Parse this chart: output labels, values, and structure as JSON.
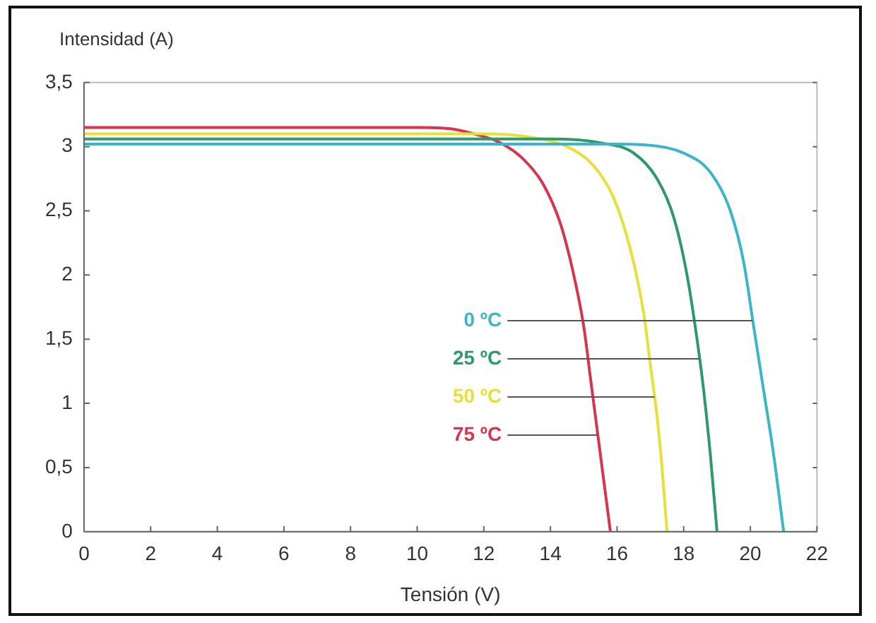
{
  "chart_data": {
    "type": "line",
    "ylabel": "Intensidad (A)",
    "xlabel": "Tensión (V)",
    "xlim": [
      0,
      22
    ],
    "xticks": [
      0,
      2,
      4,
      6,
      8,
      10,
      12,
      14,
      16,
      18,
      20,
      22
    ],
    "ylim": [
      0,
      3.5
    ],
    "yticks": [
      0,
      {
        "value": 0.5,
        "label": "0,5"
      },
      1,
      {
        "value": 1.5,
        "label": "1,5"
      },
      2,
      {
        "value": 2.5,
        "label": "2,5"
      },
      3,
      {
        "value": 3.5,
        "label": "3,5"
      }
    ],
    "grid": false,
    "legend": false,
    "marker": "none",
    "line_style": "solid",
    "series": [
      {
        "name": "0 ºC",
        "color": "#3bb5c9",
        "x": [
          0,
          16,
          17,
          18,
          18.8,
          19.4,
          19.8,
          20.1,
          20.4,
          20.7,
          21
        ],
        "values": [
          3.02,
          3.02,
          3.01,
          2.95,
          2.8,
          2.5,
          2.1,
          1.6,
          1.1,
          0.6,
          0
        ]
      },
      {
        "name": "25 ºC",
        "color": "#2e9a6a",
        "x": [
          0,
          14,
          15.5,
          16.5,
          17.2,
          17.7,
          18.1,
          18.4,
          18.6,
          18.8,
          19
        ],
        "values": [
          3.06,
          3.06,
          3.03,
          2.95,
          2.75,
          2.45,
          2,
          1.5,
          1.1,
          0.6,
          0
        ]
      },
      {
        "name": "50 ºC",
        "color": "#e8e03a",
        "x": [
          0,
          12,
          13.5,
          14.5,
          15.3,
          15.9,
          16.4,
          16.8,
          17,
          17.2,
          17.35,
          17.5
        ],
        "values": [
          3.1,
          3.1,
          3.07,
          3,
          2.85,
          2.6,
          2.2,
          1.7,
          1.3,
          0.9,
          0.5,
          0
        ]
      },
      {
        "name": "75 ºC",
        "color": "#d9334f",
        "x": [
          0,
          10,
          11,
          11.7,
          12.5,
          13.2,
          13.8,
          14.3,
          14.7,
          15,
          15.2,
          15.4,
          15.6,
          15.8
        ],
        "values": [
          3.15,
          3.15,
          3.14,
          3.1,
          3.03,
          2.9,
          2.7,
          2.4,
          2,
          1.6,
          1.2,
          0.8,
          0.4,
          0
        ]
      }
    ]
  }
}
